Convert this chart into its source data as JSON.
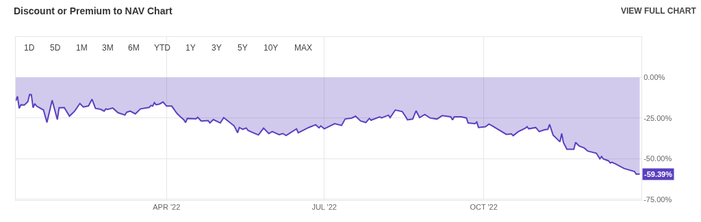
{
  "chart_data": {
    "type": "area",
    "title": "Discount or Premium to NAV Chart",
    "annotations": [
      "VIEW FULL CHART",
      "1D",
      "5D",
      "1M",
      "3M",
      "6M",
      "YTD",
      "1Y",
      "3Y",
      "5Y",
      "10Y",
      "MAX",
      {
        "text": "-59.39%",
        "x": "2022-12-30",
        "y": -59.39
      }
    ],
    "x": [
      "2022-01-04",
      "2022-01-05",
      "2022-01-06",
      "2022-01-07",
      "2022-01-09",
      "2022-01-11",
      "2022-01-12",
      "2022-01-13",
      "2022-01-14",
      "2022-01-15",
      "2022-01-16",
      "2022-01-20",
      "2022-01-22",
      "2022-01-25",
      "2022-01-28",
      "2022-01-29",
      "2022-02-01",
      "2022-02-04",
      "2022-02-07",
      "2022-02-10",
      "2022-02-12",
      "2022-02-15",
      "2022-02-17",
      "2022-02-19",
      "2022-02-22",
      "2022-02-24",
      "2022-02-25",
      "2022-02-26",
      "2022-03-01",
      "2022-03-04",
      "2022-03-08",
      "2022-03-09",
      "2022-03-11",
      "2022-03-14",
      "2022-03-17",
      "2022-03-22",
      "2022-03-23",
      "2022-03-24",
      "2022-03-25",
      "2022-03-26",
      "2022-03-28",
      "2022-03-30",
      "2022-04-01",
      "2022-04-04",
      "2022-04-07",
      "2022-04-09",
      "2022-04-11",
      "2022-04-12",
      "2022-04-13",
      "2022-04-18",
      "2022-04-19",
      "2022-04-21",
      "2022-04-25",
      "2022-04-26",
      "2022-04-28",
      "2022-05-02",
      "2022-05-04",
      "2022-05-10",
      "2022-05-12",
      "2022-05-13",
      "2022-05-15",
      "2022-05-17",
      "2022-05-18",
      "2022-05-21",
      "2022-05-24",
      "2022-05-27",
      "2022-05-30",
      "2022-06-01",
      "2022-06-05",
      "2022-06-07",
      "2022-06-09",
      "2022-06-15",
      "2022-06-16",
      "2022-06-22",
      "2022-06-26",
      "2022-06-28",
      "2022-06-29",
      "2022-07-01",
      "2022-07-07",
      "2022-07-11",
      "2022-07-13",
      "2022-07-17",
      "2022-07-19",
      "2022-07-22",
      "2022-07-25",
      "2022-07-27",
      "2022-07-28",
      "2022-08-02",
      "2022-08-03",
      "2022-08-07",
      "2022-08-08",
      "2022-08-11",
      "2022-08-15",
      "2022-08-17",
      "2022-08-18",
      "2022-08-21",
      "2022-08-23",
      "2022-08-25",
      "2022-08-28",
      "2022-08-31",
      "2022-09-04",
      "2022-09-07",
      "2022-09-12",
      "2022-09-13",
      "2022-09-14",
      "2022-09-18",
      "2022-09-21",
      "2022-09-22",
      "2022-09-26",
      "2022-09-27",
      "2022-09-28",
      "2022-10-02",
      "2022-10-04",
      "2022-10-06",
      "2022-10-14",
      "2022-10-17",
      "2022-10-18",
      "2022-10-21",
      "2022-10-25",
      "2022-10-26",
      "2022-10-27",
      "2022-10-31",
      "2022-11-02",
      "2022-11-05",
      "2022-11-07",
      "2022-11-08",
      "2022-11-10",
      "2022-11-14",
      "2022-11-15",
      "2022-11-16",
      "2022-11-18",
      "2022-11-22",
      "2022-11-23",
      "2022-11-25",
      "2022-11-28",
      "2022-11-30",
      "2022-12-05",
      "2022-12-07",
      "2022-12-08",
      "2022-12-09",
      "2022-12-12",
      "2022-12-13",
      "2022-12-14",
      "2022-12-16",
      "2022-12-18",
      "2022-12-21",
      "2022-12-27",
      "2022-12-28",
      "2022-12-30"
    ],
    "series": [
      {
        "color": "#5b3fbf",
        "values": [
          -14.4,
          -11.6,
          -19.0,
          -16.8,
          -16.9,
          -14.8,
          -10.5,
          -10.6,
          -18.6,
          -16.1,
          -17.6,
          -20.0,
          -27.7,
          -14.0,
          -25.9,
          -18.6,
          -18.5,
          -23.8,
          -20.7,
          -16.0,
          -18.2,
          -17.5,
          -13.4,
          -19.0,
          -19.6,
          -20.7,
          -19.3,
          -19.7,
          -18.8,
          -21.7,
          -23.1,
          -21.4,
          -20.7,
          -22.4,
          -19.3,
          -18.4,
          -17.2,
          -17.6,
          -15.5,
          -16.8,
          -16.3,
          -15.1,
          -17.6,
          -17.6,
          -22.1,
          -24.2,
          -26.1,
          -27.7,
          -25.2,
          -25.5,
          -24.5,
          -26.8,
          -26.5,
          -28.0,
          -25.9,
          -28.0,
          -24.7,
          -29.8,
          -34.0,
          -30.8,
          -31.9,
          -31.1,
          -32.6,
          -34.0,
          -35.4,
          -31.2,
          -34.5,
          -33.3,
          -35.2,
          -34.5,
          -35.7,
          -31.6,
          -34.0,
          -30.8,
          -29.1,
          -31.0,
          -29.8,
          -31.6,
          -28.4,
          -29.5,
          -25.6,
          -24.9,
          -23.8,
          -26.8,
          -27.7,
          -25.2,
          -26.3,
          -24.2,
          -24.9,
          -23.2,
          -24.7,
          -20.0,
          -21.0,
          -24.2,
          -26.1,
          -25.6,
          -20.5,
          -24.7,
          -22.8,
          -24.9,
          -25.6,
          -23.5,
          -24.2,
          -26.1,
          -24.2,
          -24.2,
          -24.9,
          -28.0,
          -28.4,
          -27.4,
          -30.8,
          -30.3,
          -28.7,
          -29.8,
          -35.0,
          -34.7,
          -35.8,
          -33.3,
          -31.2,
          -30.3,
          -31.6,
          -30.8,
          -33.3,
          -32.2,
          -31.9,
          -28.9,
          -35.4,
          -39.6,
          -34.5,
          -40.0,
          -44.2,
          -44.2,
          -40.0,
          -42.1,
          -43.4,
          -45.3,
          -46.6,
          -50.1,
          -48.7,
          -50.1,
          -51.3,
          -52.6,
          -52.2,
          -53.2,
          -54.3,
          -56.0,
          -57.9,
          -59.5,
          -59.39
        ]
      }
    ],
    "xlim": [
      "2022-01-04",
      "2022-12-31"
    ],
    "xticks": [
      {
        "value": "2022-04-01",
        "label": "APR '22"
      },
      {
        "value": "2022-07-01",
        "label": "JUL '22"
      },
      {
        "value": "2022-10-01",
        "label": "OCT '22"
      }
    ],
    "ylim": [
      -75.5,
      25
    ],
    "yticks": [
      {
        "value": 0,
        "label": "0.00%"
      },
      {
        "value": -25,
        "label": "-25.00%"
      },
      {
        "value": -50,
        "label": "-50.00%"
      },
      {
        "value": -75,
        "label": "-75.00%"
      }
    ],
    "grid": true,
    "line_style": "solid",
    "marker": "none"
  }
}
